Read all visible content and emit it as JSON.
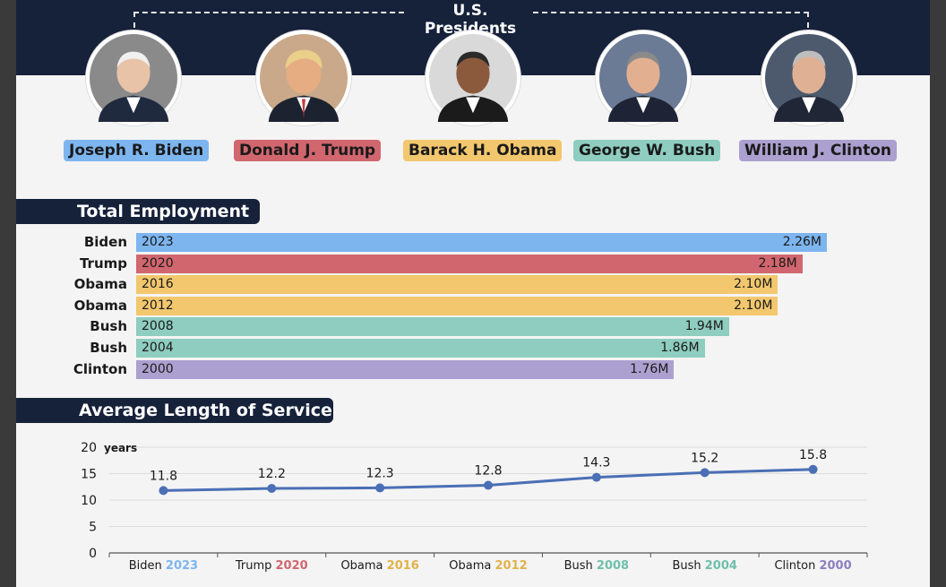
{
  "header": {
    "title": "U.S. Presidents",
    "presidents": [
      {
        "name": "Joseph R. Biden",
        "color": "#7db5ef"
      },
      {
        "name": "Donald J. Trump",
        "color": "#d1666e"
      },
      {
        "name": "Barack H. Obama",
        "color": "#f2c76e"
      },
      {
        "name": "George W. Bush",
        "color": "#8ecdbf"
      },
      {
        "name": "William J. Clinton",
        "color": "#aba0cf"
      }
    ]
  },
  "employment": {
    "title": "Total Employment"
  },
  "service": {
    "title": "Average Length of Service"
  },
  "chart_data": [
    {
      "type": "bar",
      "orientation": "horizontal",
      "title": "Total Employment",
      "categories": [
        "Biden",
        "Trump",
        "Obama",
        "Obama",
        "Bush",
        "Bush",
        "Clinton"
      ],
      "years": [
        "2023",
        "2020",
        "2016",
        "2012",
        "2008",
        "2004",
        "2000"
      ],
      "values": [
        2.26,
        2.18,
        2.1,
        2.1,
        1.94,
        1.86,
        1.76
      ],
      "value_labels": [
        "2.26M",
        "2.18M",
        "2.10M",
        "2.10M",
        "1.94M",
        "1.86M",
        "1.76M"
      ],
      "colors": [
        "#7db5ef",
        "#d1666e",
        "#f2c76e",
        "#f2c76e",
        "#8ecdbf",
        "#8ecdbf",
        "#aba0cf"
      ],
      "unit": "M"
    },
    {
      "type": "line",
      "title": "Average Length of Service",
      "ylabel": "years",
      "ylim": [
        0,
        20
      ],
      "yticks": [
        "0",
        "5",
        "10",
        "15",
        "20"
      ],
      "categories": [
        {
          "name": "Biden",
          "year": "2023",
          "color": "#7db5ef"
        },
        {
          "name": "Trump",
          "year": "2020",
          "color": "#d1666e"
        },
        {
          "name": "Obama",
          "year": "2016",
          "color": "#e0b24a"
        },
        {
          "name": "Obama",
          "year": "2012",
          "color": "#e0b24a"
        },
        {
          "name": "Bush",
          "year": "2008",
          "color": "#6fbfab"
        },
        {
          "name": "Bush",
          "year": "2004",
          "color": "#6fbfab"
        },
        {
          "name": "Clinton",
          "year": "2000",
          "color": "#8c7fbf"
        }
      ],
      "values": [
        11.8,
        12.2,
        12.3,
        12.8,
        14.3,
        15.2,
        15.8
      ],
      "value_labels": [
        "11.8",
        "12.2",
        "12.3",
        "12.8",
        "14.3",
        "15.2",
        "15.8"
      ],
      "line_color": "#4a6fb5"
    }
  ]
}
